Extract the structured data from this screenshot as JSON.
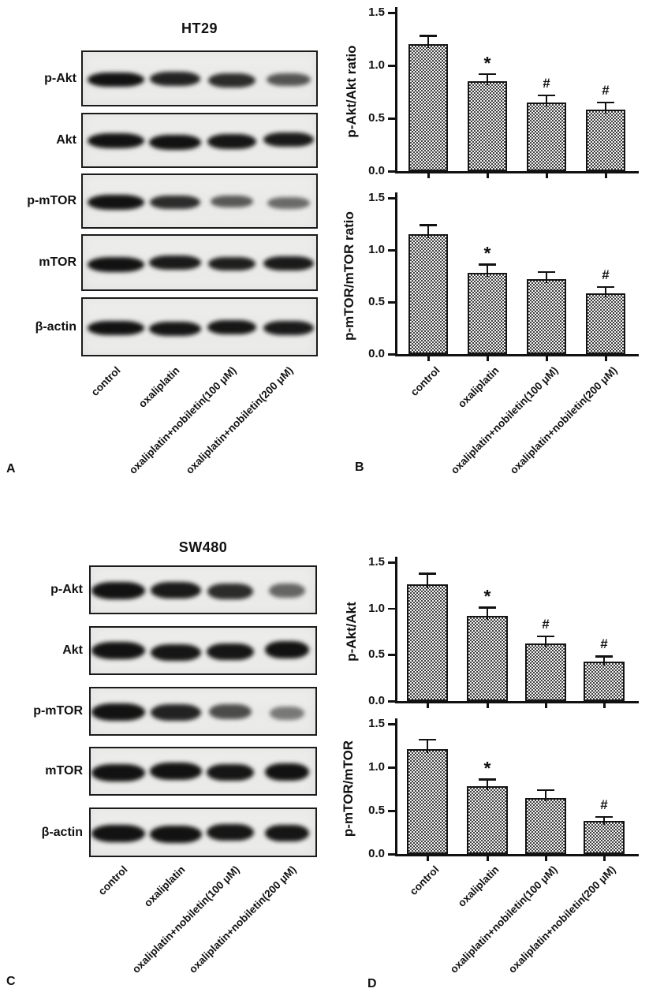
{
  "panels": {
    "A": {
      "letter": "A",
      "cell_line": "HT29",
      "antibody_labels": [
        "p-Akt",
        "Akt",
        "p-mTOR",
        "mTOR",
        "β-actin"
      ],
      "lane_labels": [
        "control",
        "oxaliplatin",
        "oxaliplatin+nobiletin(100 μM)",
        "oxaliplatin+nobiletin(200 μM)"
      ],
      "band_intensities": [
        [
          1.0,
          0.9,
          0.85,
          0.6
        ],
        [
          1.0,
          1.0,
          0.98,
          0.95
        ],
        [
          1.0,
          0.85,
          0.58,
          0.48
        ],
        [
          1.0,
          0.95,
          0.92,
          0.95
        ],
        [
          1.0,
          0.98,
          0.98,
          0.95
        ]
      ]
    },
    "B": {
      "letter": "B"
    },
    "C": {
      "letter": "C",
      "cell_line": "SW480",
      "antibody_labels": [
        "p-Akt",
        "Akt",
        "p-mTOR",
        "mTOR",
        "β-actin"
      ],
      "lane_labels": [
        "control",
        "oxaliplatin",
        "oxaliplatin+nobiletin(100 μM)",
        "oxaliplatin+nobiletin(200 μM)"
      ],
      "band_intensities": [
        [
          1.0,
          0.95,
          0.85,
          0.5
        ],
        [
          1.0,
          0.98,
          0.98,
          1.0
        ],
        [
          1.0,
          0.9,
          0.65,
          0.38
        ],
        [
          1.0,
          1.0,
          0.98,
          1.0
        ],
        [
          1.0,
          1.0,
          0.98,
          0.98
        ]
      ]
    },
    "D": {
      "letter": "D"
    }
  },
  "chart_data": [
    {
      "id": "B-top",
      "panel": "B",
      "cell_line": "HT29",
      "type": "bar",
      "title": "",
      "xlabel": "",
      "ylabel": "p-Akt/Akt ratio",
      "categories": [
        "control",
        "oxaliplatin",
        "oxaliplatin+nobiletin(100 μM)",
        "oxaliplatin+nobiletin(200 μM)"
      ],
      "values": [
        1.2,
        0.85,
        0.65,
        0.58
      ],
      "errors_upper": [
        0.08,
        0.07,
        0.07,
        0.07
      ],
      "significance": [
        "",
        "*",
        "#",
        "#"
      ],
      "ylim": [
        0,
        1.5
      ],
      "yticks": [
        0.0,
        0.5,
        1.0,
        1.5
      ],
      "ytick_labels": [
        "0.0",
        "0.5",
        "1.0",
        "1.5"
      ],
      "grid": false,
      "legend": "none"
    },
    {
      "id": "B-bottom",
      "panel": "B",
      "cell_line": "HT29",
      "type": "bar",
      "title": "",
      "xlabel": "",
      "ylabel": "p-mTOR/mTOR ratio",
      "categories": [
        "control",
        "oxaliplatin",
        "oxaliplatin+nobiletin(100 μM)",
        "oxaliplatin+nobiletin(200 μM)"
      ],
      "values": [
        1.15,
        0.78,
        0.72,
        0.58
      ],
      "errors_upper": [
        0.09,
        0.08,
        0.07,
        0.065
      ],
      "significance": [
        "",
        "*",
        "",
        "#"
      ],
      "ylim": [
        0,
        1.5
      ],
      "yticks": [
        0.0,
        0.5,
        1.0,
        1.5
      ],
      "ytick_labels": [
        "0.0",
        "0.5",
        "1.0",
        "1.5"
      ],
      "grid": false,
      "legend": "none"
    },
    {
      "id": "D-top",
      "panel": "D",
      "cell_line": "SW480",
      "type": "bar",
      "title": "",
      "xlabel": "",
      "ylabel": "p-Akt/Akt",
      "categories": [
        "control",
        "oxaliplatin",
        "oxaliplatin+nobiletin(100 μM)",
        "oxaliplatin+nobiletin(200 μM)"
      ],
      "values": [
        1.26,
        0.92,
        0.62,
        0.43
      ],
      "errors_upper": [
        0.12,
        0.09,
        0.08,
        0.055
      ],
      "significance": [
        "",
        "*",
        "#",
        "#"
      ],
      "ylim": [
        0,
        1.5
      ],
      "yticks": [
        0.0,
        0.5,
        1.0,
        1.5
      ],
      "ytick_labels": [
        "0.0",
        "0.5",
        "1.0",
        "1.5"
      ],
      "grid": false,
      "legend": "none"
    },
    {
      "id": "D-bottom",
      "panel": "D",
      "cell_line": "SW480",
      "type": "bar",
      "title": "",
      "xlabel": "",
      "ylabel": "p-mTOR/mTOR",
      "categories": [
        "control",
        "oxaliplatin",
        "oxaliplatin+nobiletin(100 μM)",
        "oxaliplatin+nobiletin(200 μM)"
      ],
      "values": [
        1.21,
        0.78,
        0.65,
        0.38
      ],
      "errors_upper": [
        0.11,
        0.08,
        0.09,
        0.05
      ],
      "significance": [
        "",
        "*",
        "",
        "#"
      ],
      "ylim": [
        0,
        1.5
      ],
      "yticks": [
        0.0,
        0.5,
        1.0,
        1.5
      ],
      "ytick_labels": [
        "0.0",
        "0.5",
        "1.0",
        "1.5"
      ],
      "grid": false,
      "legend": "none"
    }
  ],
  "colors": {
    "axis": "#111111",
    "bar_checker_dark": "#3f3f3f",
    "bar_checker_light": "#f3f3f3",
    "band": "#121212",
    "blot_background": "#ebebe9"
  }
}
